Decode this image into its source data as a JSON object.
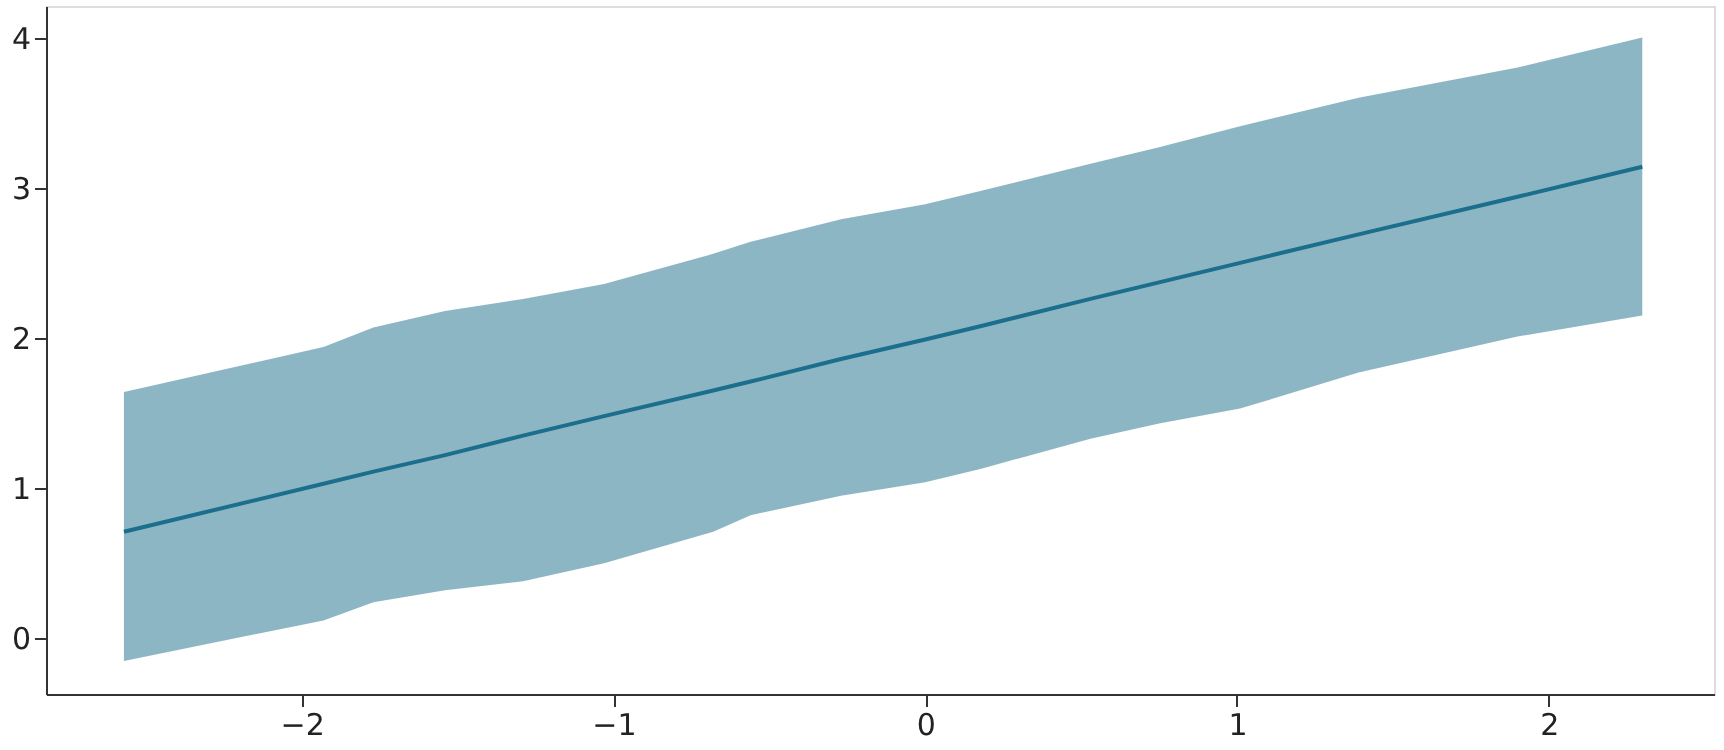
{
  "chart_data": {
    "type": "line",
    "xlim": [
      -2.82,
      2.53
    ],
    "ylim": [
      -0.37,
      4.21
    ],
    "xticks": [
      -2,
      -1,
      0,
      1,
      2
    ],
    "yticks": [
      0,
      1,
      2,
      3,
      4
    ],
    "grid": false,
    "legend": false,
    "marker": "none",
    "line_style": "solid",
    "series": [
      {
        "color": "#1b6e8c",
        "x": [
          -2.57,
          -1.93,
          -1.77,
          -1.54,
          -1.29,
          -1.03,
          -0.68,
          -0.56,
          -0.27,
          0,
          0.18,
          0.53,
          0.75,
          1.01,
          1.39,
          1.9,
          2.3
        ],
        "values": [
          0.71,
          1.03,
          1.11,
          1.22,
          1.35,
          1.48,
          1.65,
          1.71,
          1.86,
          1.99,
          2.08,
          2.26,
          2.37,
          2.5,
          2.69,
          2.94,
          3.14
        ],
        "lower": [
          -0.15,
          0.12,
          0.24,
          0.32,
          0.38,
          0.5,
          0.71,
          0.82,
          0.95,
          1.04,
          1.13,
          1.33,
          1.43,
          1.53,
          1.77,
          2.01,
          2.15
        ],
        "upper": [
          1.64,
          1.94,
          2.07,
          2.18,
          2.26,
          2.36,
          2.56,
          2.64,
          2.79,
          2.89,
          2.98,
          3.16,
          3.27,
          3.41,
          3.6,
          3.8,
          4.0
        ]
      }
    ]
  }
}
